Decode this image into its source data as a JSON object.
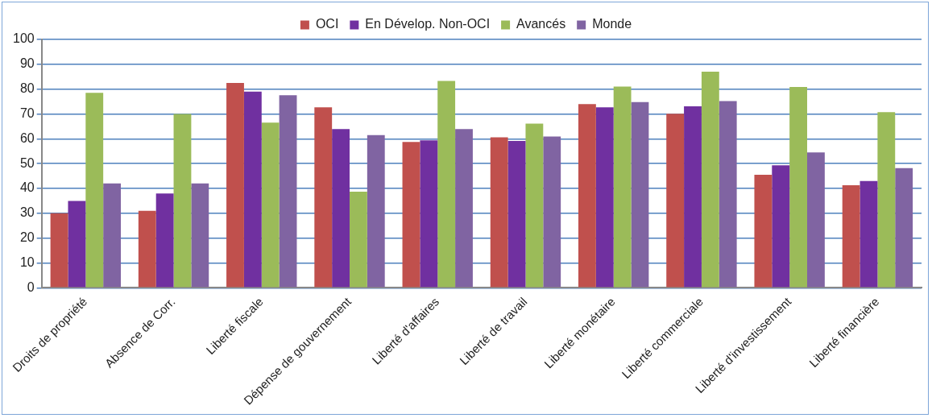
{
  "chart_data": {
    "type": "bar",
    "categories": [
      "Droits de propriété",
      "Absence de Corr.",
      "Liberté fiscale",
      "Dépense de gouvernement",
      "Liberté d'affaires",
      "Liberté de travail",
      "Liberté monétaire",
      "Liberté commerciale",
      "Liberté d'investissement",
      "Liberté financière"
    ],
    "series": [
      {
        "name": "OCI",
        "color": "#c0504d",
        "values": [
          30,
          31,
          82.5,
          72.7,
          58.7,
          60.6,
          74,
          70.1,
          45.5,
          41.3
        ]
      },
      {
        "name": "En Dévelop. Non-OCI",
        "color": "#7030a0",
        "values": [
          35,
          38,
          79,
          63.9,
          59.4,
          59.1,
          72.7,
          73.1,
          49.3,
          43
        ]
      },
      {
        "name": "Avancés",
        "color": "#9bbb59",
        "values": [
          78.5,
          70,
          66.5,
          38.7,
          83.3,
          66.1,
          81,
          87,
          80.9,
          70.7
        ]
      },
      {
        "name": "Monde",
        "color": "#8064a2",
        "values": [
          42,
          42,
          77.5,
          61.5,
          63.9,
          60.9,
          74.8,
          75.2,
          54.5,
          48.2
        ]
      }
    ],
    "ylim": [
      0,
      100
    ],
    "yticks": [
      0,
      10,
      20,
      30,
      40,
      50,
      60,
      70,
      80,
      90,
      100
    ],
    "grid": "y",
    "legend": "top"
  }
}
